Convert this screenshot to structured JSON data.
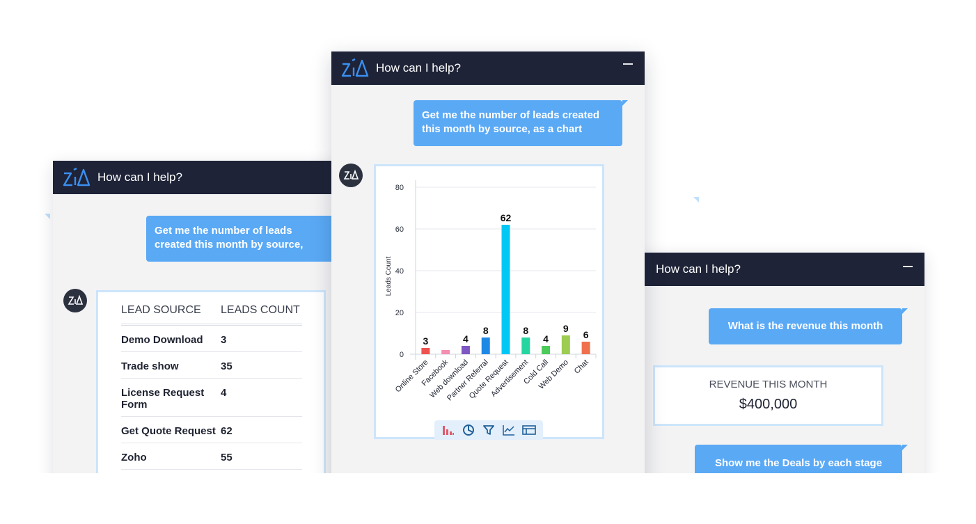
{
  "left_panel": {
    "title": "How can I help?",
    "user_message": "Get me the number of leads created this month by source,",
    "table": {
      "headers": [
        "LEAD SOURCE",
        "LEADS COUNT"
      ],
      "rows": [
        [
          "Demo Download",
          "3"
        ],
        [
          "Trade show",
          "35"
        ],
        [
          "License Request Form",
          "4"
        ],
        [
          "Get Quote Request",
          "62"
        ],
        [
          "Zoho",
          "55"
        ]
      ]
    }
  },
  "center_panel": {
    "title": "How can I help?",
    "user_message": "Get me the number of leads created this month by source, as a chart",
    "chart_toolbar": [
      "bar-chart-icon",
      "pie-chart-icon",
      "funnel-icon",
      "line-chart-icon",
      "table-icon"
    ]
  },
  "right_panel": {
    "title": "How can I help?",
    "user_message_1": "What is the revenue this month",
    "revenue_label": "REVENUE THIS MONTH",
    "revenue_value": "$400,000",
    "user_message_2": "Show me the Deals by each stage"
  },
  "chart_data": {
    "type": "bar",
    "categories": [
      "Online Store",
      "Facebook",
      "Web download",
      "Partner Referral",
      "Quote Request",
      "Advertisement",
      "Cold Call",
      "Web Demo",
      "Chat"
    ],
    "values": [
      3,
      2,
      4,
      8,
      62,
      8,
      4,
      9,
      6
    ],
    "data_labels": [
      "3",
      "",
      "4",
      "8",
      "62",
      "8",
      "4",
      "9",
      "6"
    ],
    "colors": [
      "#ef5350",
      "#f48fb1",
      "#7e57c2",
      "#1e88e5",
      "#00c8f5",
      "#26d6a0",
      "#4cca5a",
      "#9ccc50",
      "#f0704e"
    ],
    "ylabel": "Leads Count",
    "yticks": [
      "0",
      "20",
      "40",
      "60",
      "80"
    ],
    "ylim": [
      0,
      80
    ],
    "grid": true
  },
  "colors": {
    "header_bg": "#1e2337",
    "bubble": "#5aa9f5",
    "panel_bg": "#f3f3f4",
    "card_border": "#cce5fb"
  }
}
